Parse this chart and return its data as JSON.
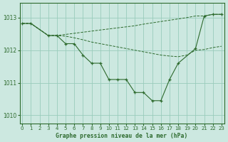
{
  "bg_color": "#cce8e0",
  "grid_color": "#99ccbb",
  "line_color": "#2d6a2d",
  "xlabel": "Graphe pression niveau de la mer (hPa)",
  "ylim": [
    1009.75,
    1013.45
  ],
  "yticks": [
    1010,
    1011,
    1012,
    1013
  ],
  "xlim": [
    -0.3,
    23.3
  ],
  "xticks": [
    0,
    1,
    2,
    3,
    4,
    5,
    6,
    7,
    8,
    9,
    10,
    11,
    12,
    13,
    14,
    15,
    16,
    17,
    18,
    19,
    20,
    21,
    22,
    23
  ],
  "series_main_x": [
    0,
    1,
    3,
    4,
    5,
    6,
    7,
    8,
    9,
    10,
    11,
    12,
    13,
    14,
    15,
    16,
    17,
    18,
    20,
    21,
    22,
    23
  ],
  "series_main_y": [
    1012.82,
    1012.82,
    1012.45,
    1012.45,
    1012.2,
    1012.2,
    1011.85,
    1011.6,
    1011.6,
    1011.1,
    1011.1,
    1011.1,
    1010.7,
    1010.7,
    1010.45,
    1010.45,
    1011.1,
    1011.6,
    1012.05,
    1013.05,
    1013.1,
    1013.1
  ],
  "series_top_x": [
    0,
    1,
    3,
    4,
    9,
    13,
    14,
    19,
    20,
    21,
    22,
    23
  ],
  "series_top_y": [
    1012.82,
    1012.82,
    1012.45,
    1012.45,
    1012.62,
    1012.75,
    1012.8,
    1013.0,
    1013.05,
    1013.05,
    1013.1,
    1013.1
  ],
  "series_mid_x": [
    0,
    1,
    3,
    4,
    5,
    6,
    7,
    8,
    9,
    10,
    11,
    12,
    13,
    14,
    15,
    16,
    17,
    18,
    19,
    20,
    21,
    22,
    23
  ],
  "series_mid_y": [
    1012.82,
    1012.82,
    1012.45,
    1012.45,
    1012.43,
    1012.38,
    1012.32,
    1012.25,
    1012.2,
    1012.15,
    1012.1,
    1012.05,
    1012.0,
    1011.95,
    1011.9,
    1011.85,
    1011.82,
    1011.8,
    1011.85,
    1012.0,
    1012.02,
    1012.08,
    1012.12
  ]
}
